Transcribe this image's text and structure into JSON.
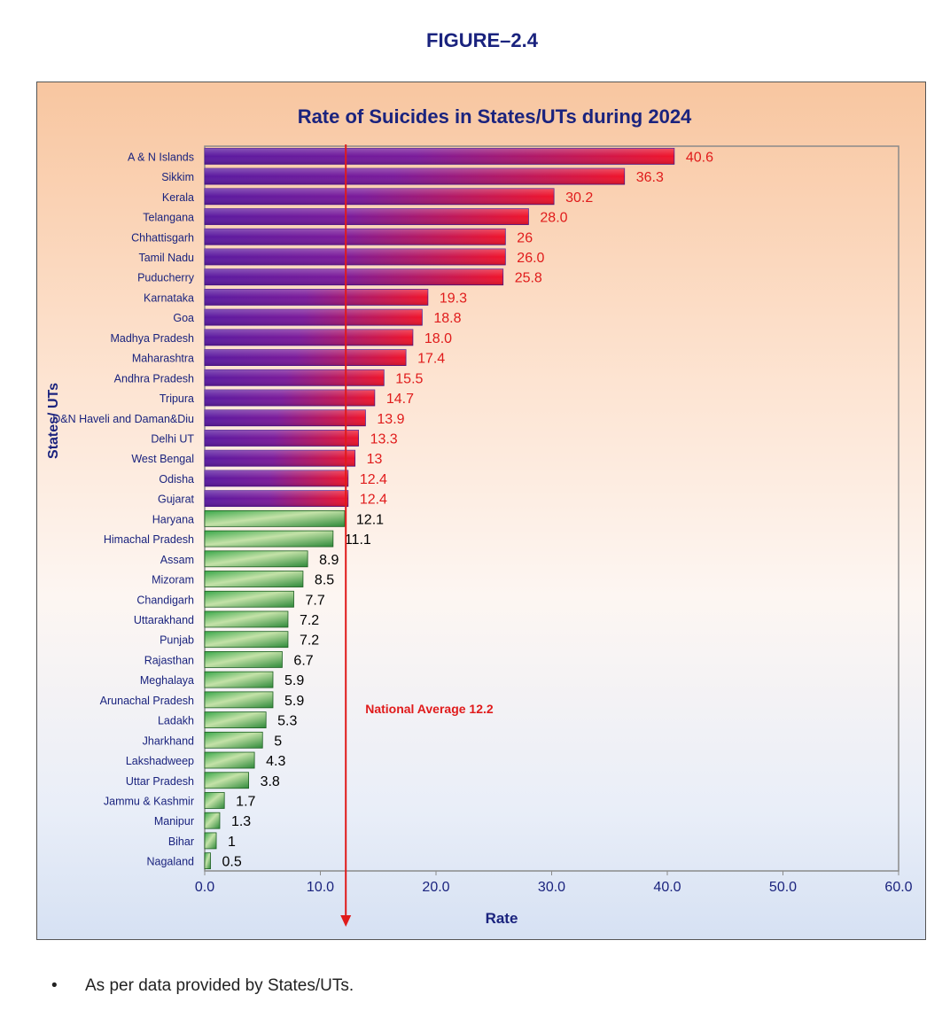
{
  "heading": "FIGURE–2.4",
  "footnote": "As per data provided by States/UTs.",
  "chart_data": {
    "type": "bar",
    "orientation": "horizontal",
    "title": "Rate of Suicides in States/UTs during 2024",
    "xlabel": "Rate",
    "ylabel": "States/ UTs",
    "xlim": [
      0,
      60
    ],
    "xticks": [
      "0.0",
      "10.0",
      "20.0",
      "30.0",
      "40.0",
      "50.0",
      "60.0"
    ],
    "categories": [
      "A & N Islands",
      "Sikkim",
      "Kerala",
      "Telangana",
      "Chhattisgarh",
      "Tamil Nadu",
      "Puducherry",
      "Karnataka",
      "Goa",
      "Madhya Pradesh",
      "Maharashtra",
      "Andhra Pradesh",
      "Tripura",
      "D&N Haveli and Daman&Diu",
      "Delhi UT",
      "West Bengal",
      "Odisha",
      "Gujarat",
      "Haryana",
      "Himachal Pradesh",
      "Assam",
      "Mizoram",
      "Chandigarh",
      "Uttarakhand",
      "Punjab",
      "Rajasthan",
      "Meghalaya",
      "Arunachal Pradesh",
      "Ladakh",
      "Jharkhand",
      "Lakshadweep",
      "Uttar Pradesh",
      "Jammu & Kashmir",
      "Manipur",
      "Bihar",
      "Nagaland"
    ],
    "values": [
      40.6,
      36.3,
      30.2,
      28.0,
      26,
      26.0,
      25.8,
      19.3,
      18.8,
      18.0,
      17.4,
      15.5,
      14.7,
      13.9,
      13.3,
      13,
      12.4,
      12.4,
      12.1,
      11.1,
      8.9,
      8.5,
      7.7,
      7.2,
      7.2,
      6.7,
      5.9,
      5.9,
      5.3,
      5,
      4.3,
      3.8,
      1.7,
      1.3,
      1,
      0.5
    ],
    "value_labels": [
      "40.6",
      "36.3",
      "30.2",
      "28.0",
      "26",
      "26.0",
      "25.8",
      "19.3",
      "18.8",
      "18.0",
      "17.4",
      "15.5",
      "14.7",
      "13.9",
      "13.3",
      "13",
      "12.4",
      "12.4",
      "12.1",
      "11.1",
      "8.9",
      "8.5",
      "7.7",
      "7.2",
      "7.2",
      "6.7",
      "5.9",
      "5.9",
      "5.3",
      "5",
      "4.3",
      "3.8",
      "1.7",
      "1.3",
      "1",
      "0.5"
    ],
    "above_average_count": 18,
    "reference_line": {
      "value": 12.2,
      "label": "National Average 12.2"
    },
    "colors": {
      "above": "#e8142a",
      "above_dark": "#5a1aa0",
      "below": "#2e9a3c",
      "below_light": "#b8dc9a",
      "label_above": "#e01b1b",
      "label_below": "#000000",
      "reference": "#e01b1b",
      "title": "#1a237e"
    },
    "grid": false
  }
}
